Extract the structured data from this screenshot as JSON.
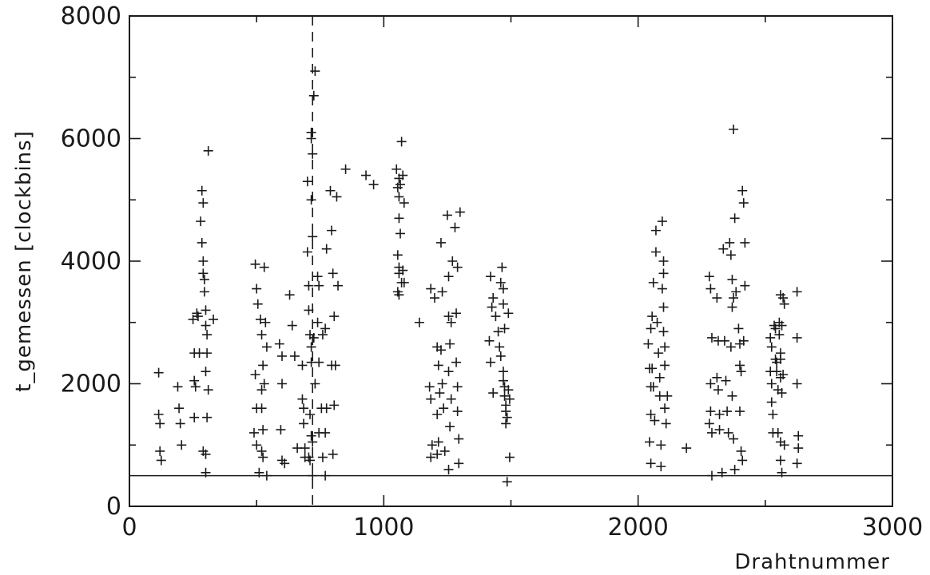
{
  "chart_data": {
    "type": "scatter",
    "title": "",
    "xlabel": "Drahtnummer",
    "ylabel": "t_gemessen [clockbins]",
    "xlim": [
      0,
      3000
    ],
    "ylim": [
      0,
      8000
    ],
    "x_ticks": [
      0,
      1000,
      2000,
      3000
    ],
    "y_ticks": [
      0,
      2000,
      4000,
      6000,
      8000
    ],
    "x_tick_labels": [
      "0",
      "1000",
      "2000",
      "3000"
    ],
    "y_tick_labels": [
      "0",
      "2000",
      "4000",
      "6000",
      "8000"
    ],
    "grid": false,
    "marker": "+",
    "reference_lines": [
      {
        "orientation": "horizontal",
        "value": 500,
        "style": "solid"
      },
      {
        "orientation": "vertical",
        "value": 720,
        "style": "dashed"
      }
    ],
    "series": [
      {
        "points": [
          [
            115,
            2180
          ],
          [
            115,
            1500
          ],
          [
            120,
            1350
          ],
          [
            120,
            900
          ],
          [
            125,
            750
          ],
          [
            190,
            1950
          ],
          [
            195,
            1600
          ],
          [
            200,
            1350
          ],
          [
            205,
            1000
          ],
          [
            250,
            3050
          ],
          [
            255,
            2500
          ],
          [
            255,
            2050
          ],
          [
            260,
            1950
          ],
          [
            255,
            1450
          ],
          [
            265,
            3150
          ],
          [
            270,
            3100
          ],
          [
            275,
            2500
          ],
          [
            280,
            4650
          ],
          [
            285,
            5150
          ],
          [
            290,
            4950
          ],
          [
            285,
            4300
          ],
          [
            290,
            4000
          ],
          [
            290,
            3800
          ],
          [
            295,
            3700
          ],
          [
            295,
            3500
          ],
          [
            300,
            3200
          ],
          [
            300,
            2950
          ],
          [
            305,
            2800
          ],
          [
            305,
            2500
          ],
          [
            300,
            2200
          ],
          [
            310,
            1900
          ],
          [
            305,
            1450
          ],
          [
            290,
            900
          ],
          [
            300,
            850
          ],
          [
            300,
            550
          ],
          [
            310,
            5800
          ],
          [
            330,
            3050
          ],
          [
            495,
            3950
          ],
          [
            500,
            3550
          ],
          [
            505,
            3300
          ],
          [
            495,
            2150
          ],
          [
            500,
            1600
          ],
          [
            490,
            1200
          ],
          [
            500,
            1000
          ],
          [
            510,
            550
          ],
          [
            515,
            3050
          ],
          [
            520,
            2800
          ],
          [
            525,
            2300
          ],
          [
            520,
            1900
          ],
          [
            520,
            1600
          ],
          [
            525,
            1250
          ],
          [
            520,
            900
          ],
          [
            525,
            800
          ],
          [
            530,
            3900
          ],
          [
            535,
            3000
          ],
          [
            540,
            2600
          ],
          [
            530,
            2000
          ],
          [
            540,
            500
          ],
          [
            590,
            2650
          ],
          [
            600,
            2450
          ],
          [
            600,
            2000
          ],
          [
            595,
            1250
          ],
          [
            600,
            750
          ],
          [
            610,
            700
          ],
          [
            630,
            3450
          ],
          [
            640,
            2950
          ],
          [
            650,
            2450
          ],
          [
            660,
            950
          ],
          [
            680,
            2300
          ],
          [
            680,
            1750
          ],
          [
            685,
            1600
          ],
          [
            685,
            1350
          ],
          [
            690,
            950
          ],
          [
            690,
            800
          ],
          [
            700,
            4150
          ],
          [
            705,
            3600
          ],
          [
            705,
            3200
          ],
          [
            710,
            2800
          ],
          [
            715,
            2600
          ],
          [
            715,
            2350
          ],
          [
            710,
            1500
          ],
          [
            715,
            1150
          ],
          [
            720,
            1050
          ],
          [
            705,
            800
          ],
          [
            710,
            750
          ],
          [
            720,
            500
          ],
          [
            700,
            5300
          ],
          [
            715,
            5000
          ],
          [
            720,
            4400
          ],
          [
            715,
            6100
          ],
          [
            715,
            6000
          ],
          [
            720,
            5750
          ],
          [
            730,
            7100
          ],
          [
            725,
            6700
          ],
          [
            730,
            2000
          ],
          [
            725,
            2750
          ],
          [
            740,
            3750
          ],
          [
            745,
            3600
          ],
          [
            740,
            3000
          ],
          [
            745,
            2350
          ],
          [
            755,
            1600
          ],
          [
            745,
            1200
          ],
          [
            760,
            2800
          ],
          [
            770,
            2900
          ],
          [
            775,
            1600
          ],
          [
            770,
            1200
          ],
          [
            775,
            4200
          ],
          [
            760,
            800
          ],
          [
            770,
            500
          ],
          [
            790,
            5150
          ],
          [
            795,
            4500
          ],
          [
            800,
            3800
          ],
          [
            805,
            3100
          ],
          [
            795,
            2300
          ],
          [
            805,
            1650
          ],
          [
            800,
            850
          ],
          [
            815,
            5050
          ],
          [
            820,
            3600
          ],
          [
            810,
            2300
          ],
          [
            850,
            5500
          ],
          [
            930,
            5400
          ],
          [
            960,
            5250
          ],
          [
            1050,
            5500
          ],
          [
            1060,
            5350
          ],
          [
            1055,
            5200
          ],
          [
            1060,
            5050
          ],
          [
            1060,
            4700
          ],
          [
            1065,
            4450
          ],
          [
            1055,
            4100
          ],
          [
            1060,
            3900
          ],
          [
            1060,
            3800
          ],
          [
            1070,
            3650
          ],
          [
            1055,
            3500
          ],
          [
            1060,
            3450
          ],
          [
            1065,
            5250
          ],
          [
            1075,
            5400
          ],
          [
            1070,
            5950
          ],
          [
            1080,
            4950
          ],
          [
            1075,
            3850
          ],
          [
            1080,
            3650
          ],
          [
            1140,
            3000
          ],
          [
            1185,
            3550
          ],
          [
            1180,
            1950
          ],
          [
            1185,
            1750
          ],
          [
            1190,
            1000
          ],
          [
            1185,
            800
          ],
          [
            1200,
            3400
          ],
          [
            1210,
            2600
          ],
          [
            1215,
            2300
          ],
          [
            1220,
            1850
          ],
          [
            1210,
            1500
          ],
          [
            1215,
            1050
          ],
          [
            1210,
            850
          ],
          [
            1225,
            4300
          ],
          [
            1230,
            3500
          ],
          [
            1225,
            2550
          ],
          [
            1230,
            2000
          ],
          [
            1235,
            1600
          ],
          [
            1240,
            900
          ],
          [
            1250,
            4750
          ],
          [
            1255,
            3750
          ],
          [
            1255,
            3100
          ],
          [
            1260,
            2650
          ],
          [
            1255,
            2200
          ],
          [
            1265,
            1750
          ],
          [
            1260,
            1300
          ],
          [
            1255,
            600
          ],
          [
            1265,
            3000
          ],
          [
            1270,
            4000
          ],
          [
            1280,
            4550
          ],
          [
            1285,
            3150
          ],
          [
            1285,
            2350
          ],
          [
            1290,
            1950
          ],
          [
            1290,
            1550
          ],
          [
            1295,
            1100
          ],
          [
            1295,
            700
          ],
          [
            1300,
            4800
          ],
          [
            1290,
            3900
          ],
          [
            1420,
            3750
          ],
          [
            1430,
            3400
          ],
          [
            1425,
            3250
          ],
          [
            1415,
            2700
          ],
          [
            1420,
            2350
          ],
          [
            1430,
            1850
          ],
          [
            1440,
            3100
          ],
          [
            1450,
            2850
          ],
          [
            1455,
            2600
          ],
          [
            1460,
            2450
          ],
          [
            1460,
            3650
          ],
          [
            1465,
            3900
          ],
          [
            1470,
            3550
          ],
          [
            1470,
            3300
          ],
          [
            1475,
            2900
          ],
          [
            1470,
            2200
          ],
          [
            1470,
            2050
          ],
          [
            1475,
            1950
          ],
          [
            1475,
            1800
          ],
          [
            1480,
            1650
          ],
          [
            1480,
            1550
          ],
          [
            1485,
            1450
          ],
          [
            1480,
            1350
          ],
          [
            1490,
            3150
          ],
          [
            1485,
            400
          ],
          [
            1495,
            800
          ],
          [
            1495,
            1750
          ],
          [
            1490,
            1900
          ],
          [
            2040,
            2650
          ],
          [
            2045,
            2250
          ],
          [
            2050,
            1950
          ],
          [
            2050,
            1500
          ],
          [
            2045,
            1050
          ],
          [
            2050,
            700
          ],
          [
            2060,
            3650
          ],
          [
            2055,
            3100
          ],
          [
            2050,
            2900
          ],
          [
            2055,
            2250
          ],
          [
            2060,
            1950
          ],
          [
            2065,
            1400
          ],
          [
            2070,
            4500
          ],
          [
            2070,
            4150
          ],
          [
            2075,
            3000
          ],
          [
            2080,
            2500
          ],
          [
            2085,
            2100
          ],
          [
            2085,
            1800
          ],
          [
            2090,
            1000
          ],
          [
            2090,
            650
          ],
          [
            2095,
            4650
          ],
          [
            2100,
            4000
          ],
          [
            2100,
            3800
          ],
          [
            2095,
            3550
          ],
          [
            2100,
            3250
          ],
          [
            2100,
            2850
          ],
          [
            2105,
            2600
          ],
          [
            2105,
            2300
          ],
          [
            2105,
            1600
          ],
          [
            2110,
            1350
          ],
          [
            2115,
            1800
          ],
          [
            2190,
            950
          ],
          [
            2280,
            3750
          ],
          [
            2285,
            3550
          ],
          [
            2290,
            2750
          ],
          [
            2285,
            2000
          ],
          [
            2285,
            1550
          ],
          [
            2280,
            1350
          ],
          [
            2290,
            1200
          ],
          [
            2290,
            500
          ],
          [
            2310,
            3400
          ],
          [
            2315,
            2700
          ],
          [
            2310,
            2100
          ],
          [
            2315,
            1900
          ],
          [
            2320,
            1500
          ],
          [
            2320,
            1250
          ],
          [
            2330,
            550
          ],
          [
            2335,
            4200
          ],
          [
            2340,
            2700
          ],
          [
            2345,
            2050
          ],
          [
            2350,
            1550
          ],
          [
            2355,
            1200
          ],
          [
            2360,
            4300
          ],
          [
            2365,
            4100
          ],
          [
            2370,
            3700
          ],
          [
            2375,
            3400
          ],
          [
            2370,
            3250
          ],
          [
            2365,
            2600
          ],
          [
            2370,
            1800
          ],
          [
            2375,
            1100
          ],
          [
            2380,
            600
          ],
          [
            2380,
            4700
          ],
          [
            2385,
            3500
          ],
          [
            2395,
            2900
          ],
          [
            2400,
            2650
          ],
          [
            2400,
            2300
          ],
          [
            2405,
            2200
          ],
          [
            2400,
            1550
          ],
          [
            2405,
            900
          ],
          [
            2410,
            750
          ],
          [
            2410,
            5150
          ],
          [
            2415,
            4950
          ],
          [
            2420,
            4300
          ],
          [
            2420,
            3600
          ],
          [
            2415,
            2700
          ],
          [
            2375,
            6150
          ],
          [
            2520,
            2750
          ],
          [
            2525,
            2600
          ],
          [
            2520,
            2200
          ],
          [
            2525,
            2000
          ],
          [
            2525,
            1700
          ],
          [
            2530,
            1500
          ],
          [
            2530,
            1200
          ],
          [
            2535,
            2950
          ],
          [
            2540,
            2900
          ],
          [
            2540,
            2400
          ],
          [
            2545,
            2350
          ],
          [
            2545,
            2200
          ],
          [
            2550,
            1900
          ],
          [
            2550,
            1200
          ],
          [
            2555,
            3000
          ],
          [
            2555,
            2800
          ],
          [
            2560,
            2500
          ],
          [
            2560,
            2100
          ],
          [
            2565,
            1850
          ],
          [
            2560,
            1050
          ],
          [
            2560,
            750
          ],
          [
            2565,
            550
          ],
          [
            2570,
            3400
          ],
          [
            2575,
            3300
          ],
          [
            2570,
            2150
          ],
          [
            2575,
            1000
          ],
          [
            2565,
            2950
          ],
          [
            2560,
            2400
          ],
          [
            2625,
            3500
          ],
          [
            2625,
            2750
          ],
          [
            2625,
            2000
          ],
          [
            2630,
            1150
          ],
          [
            2630,
            950
          ],
          [
            2625,
            700
          ],
          [
            2560,
            3450
          ]
        ]
      }
    ]
  }
}
